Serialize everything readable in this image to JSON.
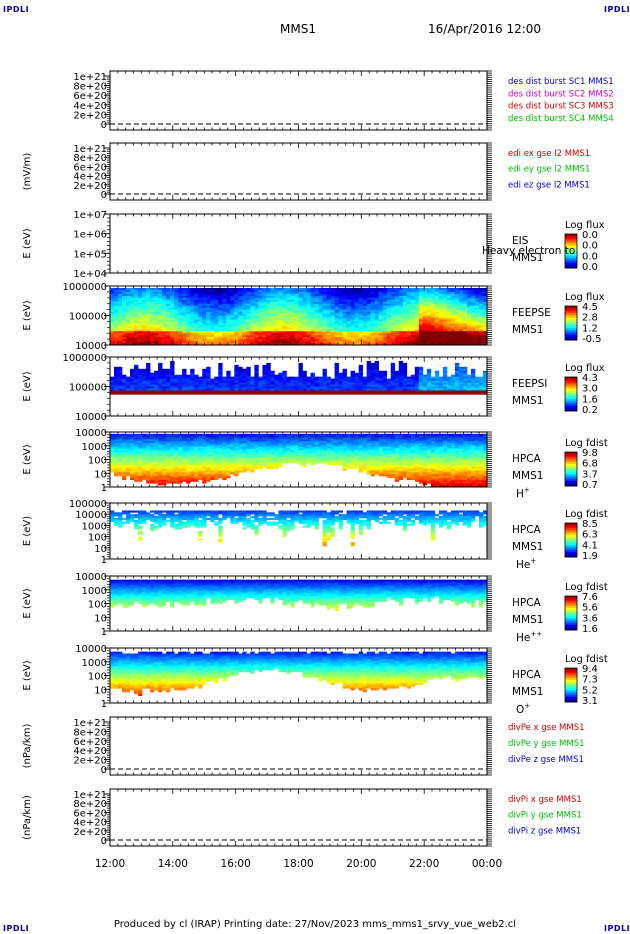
{
  "corner_label": "IPDLI",
  "header": {
    "spacecraft": "MMS1",
    "datetime": "16/Apr/2016 12:00"
  },
  "footer": {
    "text": "Produced by cl (IRAP)   Printing date: 27/Nov/2023   mms_mms1_srvy_vue_web2.cl"
  },
  "colors": {
    "red": "#d00000",
    "magenta": "#cc00cc",
    "green": "#00bb00",
    "blue": "#0000cc"
  },
  "chart_data": [
    {
      "type": "line",
      "ylabel": "",
      "yticks": [
        "1e+21",
        "8e+20",
        "6e+20",
        "4e+20",
        "2e+20",
        "0"
      ],
      "legend": [
        {
          "label": "des dist burst SC1 MMS1",
          "color": "#0000cc"
        },
        {
          "label": "des dist burst SC2 MMS2",
          "color": "#cc00cc"
        },
        {
          "label": "des dist burst SC3 MMS3",
          "color": "#d00000"
        },
        {
          "label": "des dist burst SC4 MMS4",
          "color": "#00bb00"
        }
      ]
    },
    {
      "type": "line",
      "ylabel": "(mV/m)",
      "yticks": [
        "1e+21",
        "8e+20",
        "6e+20",
        "4e+20",
        "2e+20",
        "0"
      ],
      "legend": [
        {
          "label": "edi ex gse l2 MMS1",
          "color": "#d00000"
        },
        {
          "label": "edi ey gse l2 MMS1",
          "color": "#00bb00"
        },
        {
          "label": "edi ez gse l2 MMS1",
          "color": "#0000cc"
        }
      ]
    },
    {
      "type": "heatmap",
      "ylabel": "E (eV)",
      "yticks": [
        "1e+07",
        "1e+06",
        "1e+05",
        "1e+04"
      ],
      "labels": [
        "EIS",
        "MMS1"
      ],
      "overlay": "Heavy electron to",
      "cbar_title": "Log flux",
      "cbar_ticks": [
        "0.0",
        "0.0",
        "0.0",
        "0.0"
      ],
      "fill": "none"
    },
    {
      "type": "heatmap",
      "ylabel": "E (eV)",
      "yticks": [
        "1000000",
        "100000",
        "10000"
      ],
      "labels": [
        "FEEPSE",
        "MMS1"
      ],
      "cbar_title": "Log flux",
      "cbar_ticks": [
        "4.5",
        "2.8",
        "1.2",
        "-0.5"
      ],
      "fill": "feepse"
    },
    {
      "type": "heatmap",
      "ylabel": "E (eV)",
      "yticks": [
        "1000000",
        "100000",
        "10000"
      ],
      "labels": [
        "FEEPSI",
        "MMS1"
      ],
      "cbar_title": "Log flux",
      "cbar_ticks": [
        "4.3",
        "3.0",
        "1.6",
        "0.2"
      ],
      "fill": "feepsi"
    },
    {
      "type": "heatmap",
      "ylabel": "E (eV)",
      "yticks": [
        "10000",
        "1000",
        "100",
        "10",
        "1"
      ],
      "labels": [
        "HPCA",
        "MMS1"
      ],
      "species": "H",
      "species_sup": "+",
      "cbar_title": "Log fdist",
      "cbar_ticks": [
        "9.8",
        "6.8",
        "3.7",
        "0.7"
      ],
      "fill": "hplus"
    },
    {
      "type": "heatmap",
      "ylabel": "E (eV)",
      "yticks": [
        "100000",
        "10000",
        "1000",
        "100",
        "10",
        "1"
      ],
      "labels": [
        "HPCA",
        "MMS1"
      ],
      "species": "He",
      "species_sup": "+",
      "cbar_title": "Log fdist",
      "cbar_ticks": [
        "8.5",
        "6.3",
        "4.1",
        "1.9"
      ],
      "fill": "heplus"
    },
    {
      "type": "heatmap",
      "ylabel": "E (eV)",
      "yticks": [
        "10000",
        "1000",
        "100",
        "10",
        "1"
      ],
      "labels": [
        "HPCA",
        "MMS1"
      ],
      "species": "He",
      "species_sup": "++",
      "cbar_title": "Log fdist",
      "cbar_ticks": [
        "7.6",
        "5.6",
        "3.6",
        "1.6"
      ],
      "fill": "hepp"
    },
    {
      "type": "heatmap",
      "ylabel": "E (eV)",
      "yticks": [
        "10000",
        "1000",
        "100",
        "10",
        "1"
      ],
      "labels": [
        "HPCA",
        "MMS1"
      ],
      "species": "O",
      "species_sup": "+",
      "cbar_title": "Log fdist",
      "cbar_ticks": [
        "9.4",
        "7.3",
        "5.2",
        "3.1"
      ],
      "fill": "oplus"
    },
    {
      "type": "line",
      "ylabel": "(nPa/km)",
      "yticks": [
        "1e+21",
        "8e+20",
        "6e+20",
        "4e+20",
        "2e+20",
        "0"
      ],
      "legend": [
        {
          "label": "divPe x gse MMS1",
          "color": "#d00000"
        },
        {
          "label": "divPe y gse MMS1",
          "color": "#00bb00"
        },
        {
          "label": "divPe z gse MMS1",
          "color": "#0000cc"
        }
      ]
    },
    {
      "type": "line",
      "ylabel": "(nPa/km)",
      "yticks": [
        "1e+21",
        "8e+20",
        "6e+20",
        "4e+20",
        "2e+20",
        "0"
      ],
      "legend": [
        {
          "label": "divPi x gse MMS1",
          "color": "#d00000"
        },
        {
          "label": "divPi y gse MMS1",
          "color": "#00bb00"
        },
        {
          "label": "divPi z gse MMS1",
          "color": "#0000cc"
        }
      ],
      "xticks": [
        "12:00",
        "14:00",
        "16:00",
        "18:00",
        "20:00",
        "22:00",
        "00:00"
      ]
    }
  ]
}
